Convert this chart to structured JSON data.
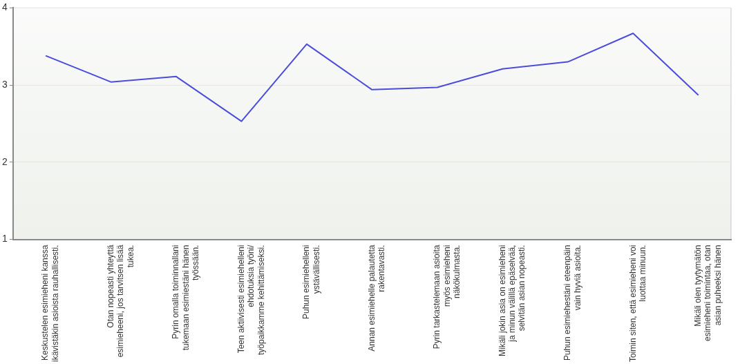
{
  "chart_data": {
    "type": "line",
    "categories": [
      "Keskustelen esimieheni kanssa ikävistäkin asioista rauhallisesti.",
      "Otan nopeasti yhteyttä esimieheeni, jos tarvitsen lisää tukea.",
      "Pyrin omalla toiminnallani tukemaan esimiestäni hänen työssään.",
      "Teen aktiivisesti esimiehelleni ehdotuksia työni/ työpaikkamme kehittämiseksi.",
      "Puhun esimiehelleni ystävällisesti.",
      "Annan esimiehelle palautetta rakentavasti.",
      "Pyrin tarkastelemaan asioita myös esimieheni näkökulmasta.",
      "Mikäli jokin asia on esimieheni ja minun välillä epäselvää, selvitän asian nopeasti.",
      "Puhun esimiehestäni eteenpäin vain hyviä asioita.",
      "Toimin siten, että esimieheni voi luottaa minuun.",
      "Mikäli olen tyytymätön esimieheni toimintaa, otan asian puheeksi hänen"
    ],
    "series": [
      {
        "color": "#4b4bdc",
        "values": [
          3.38,
          3.04,
          3.11,
          2.53,
          3.53,
          2.94,
          2.97,
          3.21,
          3.3,
          3.67,
          2.87
        ]
      }
    ],
    "ylim": [
      1,
      4
    ],
    "yticks": [
      1,
      2,
      3,
      4
    ],
    "grid": "y",
    "legend": false,
    "marker": "none",
    "line_style": "solid"
  }
}
